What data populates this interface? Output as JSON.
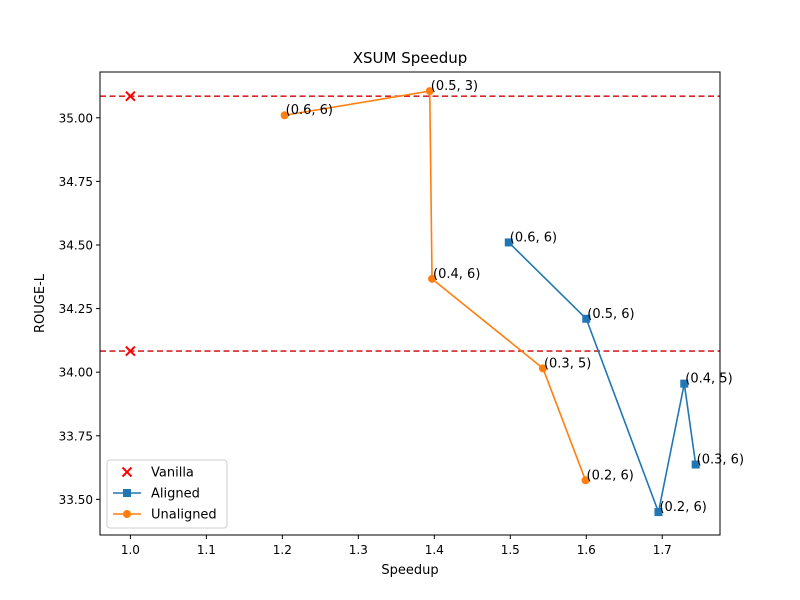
{
  "chart_data": {
    "type": "line",
    "title": "XSUM Speedup",
    "xlabel": "Speedup",
    "ylabel": "ROUGE-L",
    "xlim": [
      0.96,
      1.776
    ],
    "ylim": [
      33.36,
      35.18
    ],
    "xticks": [
      1.0,
      1.1,
      1.2,
      1.3,
      1.4,
      1.5,
      1.6,
      1.7
    ],
    "yticks": [
      33.5,
      33.75,
      34.0,
      34.25,
      34.5,
      34.75,
      35.0
    ],
    "grid": false,
    "legend_position": "lower-left",
    "hlines": [
      {
        "y": 35.085,
        "color": "#d62728",
        "style": "dashed"
      },
      {
        "y": 34.083,
        "color": "#d62728",
        "style": "dashed"
      }
    ],
    "series": [
      {
        "name": "Vanilla",
        "kind": "scatter",
        "marker": "x",
        "color": "#ff0000",
        "points": [
          {
            "x": 1.0,
            "y": 35.085
          },
          {
            "x": 1.0,
            "y": 34.083
          }
        ]
      },
      {
        "name": "Aligned",
        "kind": "line",
        "marker": "square",
        "color": "#1f77b4",
        "points": [
          {
            "x": 1.498,
            "y": 34.51,
            "label": "(0.6, 6)"
          },
          {
            "x": 1.6,
            "y": 34.21,
            "label": "(0.5, 6)"
          },
          {
            "x": 1.695,
            "y": 33.45,
            "label": "(0.2, 6)"
          },
          {
            "x": 1.729,
            "y": 33.955,
            "label": "(0.4, 5)"
          },
          {
            "x": 1.744,
            "y": 33.637,
            "label": "(0.3, 6)"
          }
        ]
      },
      {
        "name": "Unaligned",
        "kind": "line",
        "marker": "circle",
        "color": "#ff7f0e",
        "points": [
          {
            "x": 1.203,
            "y": 35.01,
            "label": "(0.6, 6)"
          },
          {
            "x": 1.394,
            "y": 35.105,
            "label": "(0.5, 3)"
          },
          {
            "x": 1.397,
            "y": 34.367,
            "label": "(0.4, 6)"
          },
          {
            "x": 1.543,
            "y": 34.015,
            "label": "(0.3, 5)"
          },
          {
            "x": 1.599,
            "y": 33.575,
            "label": "(0.2, 6)"
          }
        ]
      }
    ]
  }
}
